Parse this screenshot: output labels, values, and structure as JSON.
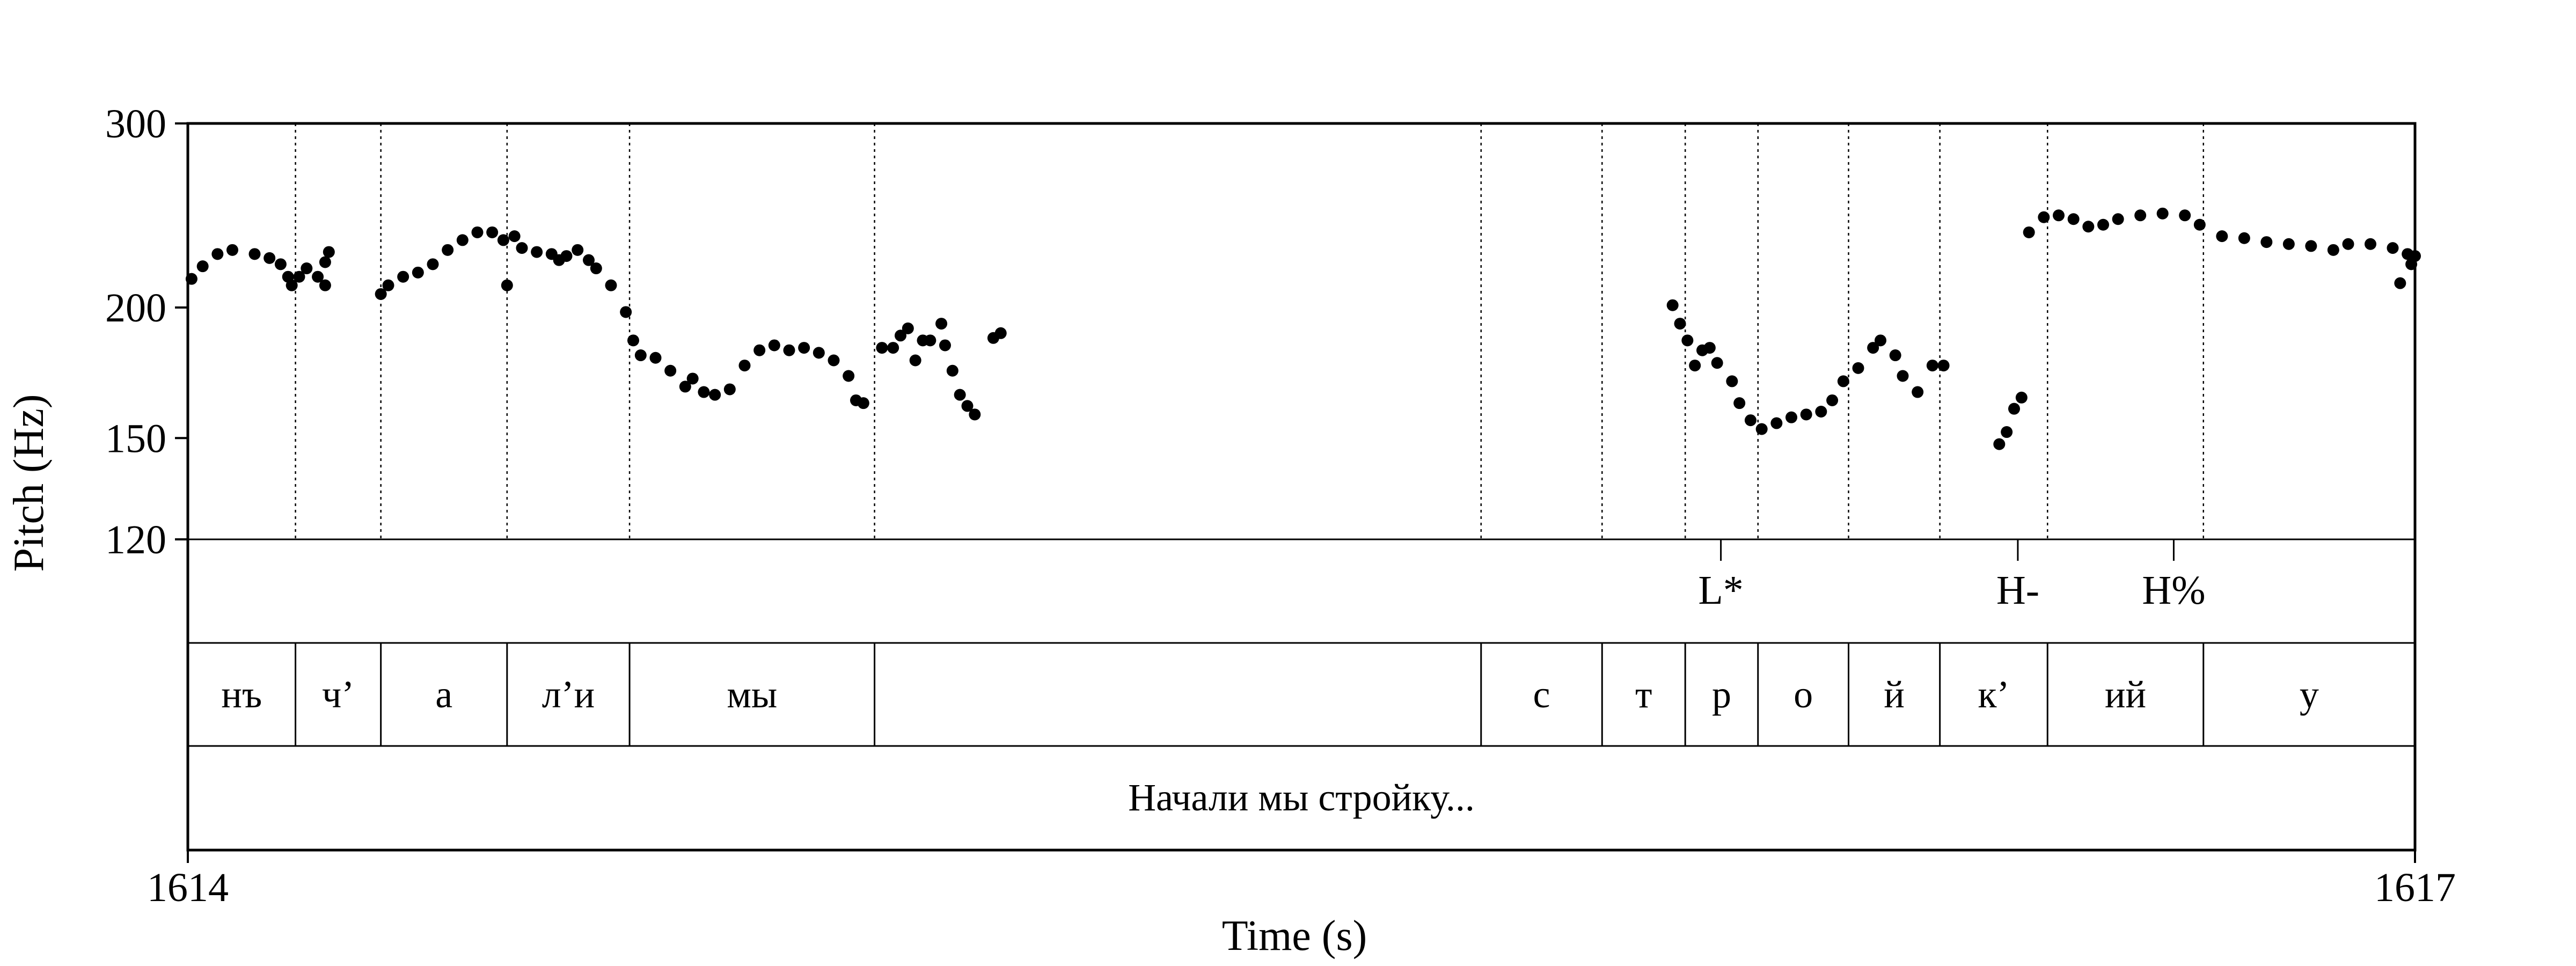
{
  "chart_data": {
    "type": "scatter",
    "xlabel": "Time (s)",
    "ylabel": "Pitch (Hz)",
    "x_range": [
      1614,
      1617
    ],
    "x_ticks": [
      "1614",
      "1617"
    ],
    "y_range": [
      120,
      300
    ],
    "y_scale": "log",
    "y_ticks": [
      {
        "value": 300,
        "label": "300"
      },
      {
        "value": 200,
        "label": "200"
      },
      {
        "value": 150,
        "label": "150"
      },
      {
        "value": 120,
        "label": "120"
      }
    ],
    "grid": false,
    "marker_color": "#000000",
    "series": [
      {
        "points": [
          [
            1614.005,
            213
          ],
          [
            1614.02,
            219
          ],
          [
            1614.04,
            225
          ],
          [
            1614.06,
            227
          ],
          [
            1614.09,
            225
          ],
          [
            1614.11,
            223
          ],
          [
            1614.125,
            220
          ],
          [
            1614.135,
            214
          ],
          [
            1614.14,
            210
          ],
          [
            1614.15,
            214
          ],
          [
            1614.16,
            218
          ],
          [
            1614.175,
            214
          ],
          [
            1614.185,
            221
          ],
          [
            1614.19,
            226
          ],
          [
            1614.185,
            210
          ],
          [
            1614.26,
            206
          ],
          [
            1614.27,
            210
          ],
          [
            1614.29,
            214
          ],
          [
            1614.31,
            216
          ],
          [
            1614.33,
            220
          ],
          [
            1614.35,
            227
          ],
          [
            1614.37,
            232
          ],
          [
            1614.39,
            236
          ],
          [
            1614.41,
            236
          ],
          [
            1614.425,
            232
          ],
          [
            1614.43,
            210
          ],
          [
            1614.44,
            234
          ],
          [
            1614.45,
            228
          ],
          [
            1614.47,
            226
          ],
          [
            1614.49,
            225
          ],
          [
            1614.5,
            222
          ],
          [
            1614.51,
            224
          ],
          [
            1614.525,
            227
          ],
          [
            1614.54,
            222
          ],
          [
            1614.55,
            218
          ],
          [
            1614.57,
            210
          ],
          [
            1614.59,
            198
          ],
          [
            1614.6,
            186
          ],
          [
            1614.61,
            180
          ],
          [
            1614.63,
            179
          ],
          [
            1614.65,
            174
          ],
          [
            1614.67,
            168
          ],
          [
            1614.68,
            171
          ],
          [
            1614.695,
            166
          ],
          [
            1614.71,
            165
          ],
          [
            1614.73,
            167
          ],
          [
            1614.75,
            176
          ],
          [
            1614.77,
            182
          ],
          [
            1614.79,
            184
          ],
          [
            1614.81,
            182
          ],
          [
            1614.83,
            183
          ],
          [
            1614.85,
            181
          ],
          [
            1614.87,
            178
          ],
          [
            1614.89,
            172
          ],
          [
            1614.9,
            163
          ],
          [
            1614.91,
            162
          ],
          [
            1614.935,
            183
          ],
          [
            1614.95,
            183
          ],
          [
            1614.96,
            188
          ],
          [
            1614.97,
            191
          ],
          [
            1614.98,
            178
          ],
          [
            1614.99,
            186
          ],
          [
            1615.0,
            186
          ],
          [
            1615.015,
            193
          ],
          [
            1615.02,
            184
          ],
          [
            1615.03,
            174
          ],
          [
            1615.04,
            165
          ],
          [
            1615.05,
            161
          ],
          [
            1615.06,
            158
          ],
          [
            1615.085,
            187
          ],
          [
            1615.095,
            189
          ],
          [
            1616.0,
            201
          ],
          [
            1616.01,
            193
          ],
          [
            1616.02,
            186
          ],
          [
            1616.03,
            176
          ],
          [
            1616.04,
            182
          ],
          [
            1616.05,
            183
          ],
          [
            1616.06,
            177
          ],
          [
            1616.08,
            170
          ],
          [
            1616.09,
            162
          ],
          [
            1616.105,
            156
          ],
          [
            1616.12,
            153
          ],
          [
            1616.14,
            155
          ],
          [
            1616.16,
            157
          ],
          [
            1616.18,
            158
          ],
          [
            1616.2,
            159
          ],
          [
            1616.215,
            163
          ],
          [
            1616.23,
            170
          ],
          [
            1616.25,
            175
          ],
          [
            1616.27,
            183
          ],
          [
            1616.28,
            186
          ],
          [
            1616.3,
            180
          ],
          [
            1616.31,
            172
          ],
          [
            1616.33,
            166
          ],
          [
            1616.35,
            176
          ],
          [
            1616.365,
            176
          ],
          [
            1616.44,
            148
          ],
          [
            1616.45,
            152
          ],
          [
            1616.46,
            160
          ],
          [
            1616.47,
            164
          ],
          [
            1616.48,
            236
          ],
          [
            1616.5,
            244
          ],
          [
            1616.52,
            245
          ],
          [
            1616.54,
            243
          ],
          [
            1616.56,
            239
          ],
          [
            1616.58,
            240
          ],
          [
            1616.6,
            243
          ],
          [
            1616.63,
            245
          ],
          [
            1616.66,
            246
          ],
          [
            1616.69,
            245
          ],
          [
            1616.71,
            240
          ],
          [
            1616.74,
            234
          ],
          [
            1616.77,
            233
          ],
          [
            1616.8,
            231
          ],
          [
            1616.83,
            230
          ],
          [
            1616.86,
            229
          ],
          [
            1616.89,
            227
          ],
          [
            1616.91,
            230
          ],
          [
            1616.94,
            230
          ],
          [
            1616.97,
            228
          ],
          [
            1616.99,
            225
          ],
          [
            1617.0,
            224
          ],
          [
            1616.98,
            211
          ],
          [
            1616.995,
            220
          ]
        ]
      }
    ],
    "tiers": {
      "tones": [
        {
          "time": 1616.065,
          "label": "L*"
        },
        {
          "time": 1616.465,
          "label": "H-"
        },
        {
          "time": 1616.675,
          "label": "H%"
        }
      ],
      "segments": [
        {
          "start": 1614.0,
          "end": 1614.145,
          "label": "нъ"
        },
        {
          "start": 1614.145,
          "end": 1614.26,
          "label": "ч’"
        },
        {
          "start": 1614.26,
          "end": 1614.43,
          "label": "а"
        },
        {
          "start": 1614.43,
          "end": 1614.595,
          "label": "л’и"
        },
        {
          "start": 1614.595,
          "end": 1614.925,
          "label": "мы"
        },
        {
          "start": 1614.925,
          "end": 1615.742,
          "label": ""
        },
        {
          "start": 1615.742,
          "end": 1615.905,
          "label": "с"
        },
        {
          "start": 1615.905,
          "end": 1616.017,
          "label": "т"
        },
        {
          "start": 1616.017,
          "end": 1616.115,
          "label": "р"
        },
        {
          "start": 1616.115,
          "end": 1616.237,
          "label": "о"
        },
        {
          "start": 1616.237,
          "end": 1616.36,
          "label": "й"
        },
        {
          "start": 1616.36,
          "end": 1616.505,
          "label": "к’"
        },
        {
          "start": 1616.505,
          "end": 1616.715,
          "label": "ий"
        },
        {
          "start": 1616.715,
          "end": 1617.0,
          "label": "у"
        }
      ],
      "sentence": {
        "start": 1614.0,
        "end": 1617.0,
        "label": "Начали мы стройку..."
      }
    }
  }
}
